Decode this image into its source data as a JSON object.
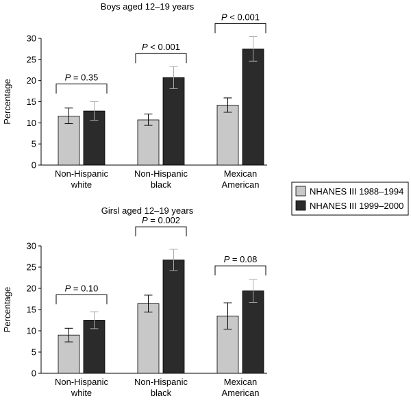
{
  "legend": {
    "placement": "right",
    "entries": [
      {
        "label": "NHANES III 1988–1994",
        "color": "#c8c8c8"
      },
      {
        "label": "NHANES III 1999–2000",
        "color": "#2b2b2b"
      }
    ]
  },
  "chart_data": [
    {
      "type": "bar",
      "title": "Boys aged 12–19 years",
      "ylabel": "Percentage",
      "xlabel": "",
      "ylim": [
        0,
        30
      ],
      "yticks": [
        "0",
        "5",
        "10",
        "15",
        "20",
        "25",
        "30"
      ],
      "categories": [
        [
          "Non-Hispanic",
          "white"
        ],
        [
          "Non-Hispanic",
          "black"
        ],
        [
          "Mexican",
          "American"
        ]
      ],
      "series": [
        {
          "name": "NHANES III 1988–1994",
          "color": "#c8c8c8",
          "values": [
            11.6,
            10.7,
            14.2
          ],
          "err_low": [
            9.8,
            9.4,
            12.5
          ],
          "err_high": [
            13.5,
            12.1,
            15.9
          ]
        },
        {
          "name": "NHANES III 1999–2000",
          "color": "#2b2b2b",
          "values": [
            12.8,
            20.7,
            27.5
          ],
          "err_low": [
            10.6,
            18.1,
            24.6
          ],
          "err_high": [
            15.0,
            23.3,
            30.4
          ]
        }
      ],
      "annotations": [
        {
          "italic": "P",
          "text": " = 0.35",
          "category": 0,
          "level": 19.2
        },
        {
          "italic": "P",
          "text": " < 0.001",
          "category": 1,
          "level": 26.4
        },
        {
          "italic": "P",
          "text": " < 0.001",
          "category": 2,
          "level": 33.5
        }
      ],
      "grid": false
    },
    {
      "type": "bar",
      "title": "Girsl aged 12–19 years",
      "ylabel": "Percentage",
      "xlabel": "",
      "ylim": [
        0,
        30
      ],
      "yticks": [
        "0",
        "5",
        "10",
        "15",
        "20",
        "25",
        "30"
      ],
      "categories": [
        [
          "Non-Hispanic",
          "white"
        ],
        [
          "Non-Hispanic",
          "black"
        ],
        [
          "Mexican",
          "American"
        ]
      ],
      "series": [
        {
          "name": "NHANES III 1988–1994",
          "color": "#c8c8c8",
          "values": [
            9.0,
            16.4,
            13.5
          ],
          "err_low": [
            7.4,
            14.4,
            10.4
          ],
          "err_high": [
            10.6,
            18.4,
            16.6
          ]
        },
        {
          "name": "NHANES III 1999–2000",
          "color": "#2b2b2b",
          "values": [
            12.5,
            26.7,
            19.4
          ],
          "err_low": [
            10.5,
            24.2,
            16.7
          ],
          "err_high": [
            14.5,
            29.2,
            22.1
          ]
        }
      ],
      "annotations": [
        {
          "italic": "P",
          "text": " = 0.10",
          "category": 0,
          "level": 18.5
        },
        {
          "italic": "P",
          "text": " = 0.002",
          "category": 1,
          "level": 34.5
        },
        {
          "italic": "P",
          "text": " = 0.08",
          "category": 2,
          "level": 25.3
        }
      ],
      "grid": false
    }
  ]
}
